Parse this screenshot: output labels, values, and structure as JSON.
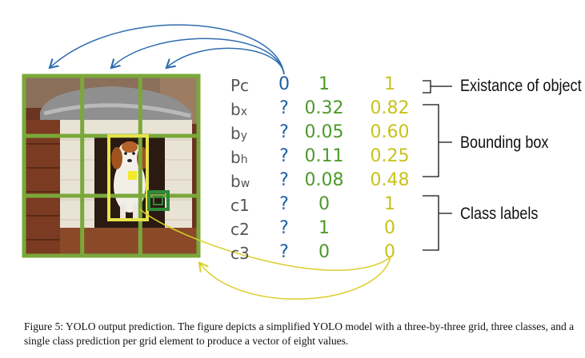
{
  "vector_rows": [
    {
      "label": "Pc",
      "sub": "",
      "col0": "0",
      "col1": "1",
      "col2": "1"
    },
    {
      "label": "b",
      "sub": "x",
      "col0": "?",
      "col1": "0.32",
      "col2": "0.82"
    },
    {
      "label": "b",
      "sub": "y",
      "col0": "?",
      "col1": "0.05",
      "col2": "0.60"
    },
    {
      "label": "b",
      "sub": "h",
      "col0": "?",
      "col1": "0.11",
      "col2": "0.25"
    },
    {
      "label": "b",
      "sub": "w",
      "col0": "?",
      "col1": "0.08",
      "col2": "0.48"
    },
    {
      "label": "c1",
      "sub": "",
      "col0": "?",
      "col1": "0",
      "col2": "1"
    },
    {
      "label": "c2",
      "sub": "",
      "col0": "?",
      "col1": "1",
      "col2": "0"
    },
    {
      "label": "c3",
      "sub": "",
      "col0": "?",
      "col1": "0",
      "col2": "0"
    }
  ],
  "groups": {
    "existence": "Existance of object",
    "bbox": "Bounding box",
    "classes": "Class labels"
  },
  "caption": "Figure 5: YOLO output prediction. The figure depicts a simplified YOLO model with a three-by-three grid, three classes, and a single class prediction per grid element to produce a vector of eight values.",
  "colors": {
    "grid_green": "#7aa83a",
    "box_yellow": "#e6e24a",
    "box_green": "#2e8b3a",
    "arrow_blue": "#2f6db0",
    "arrow_yellow": "#d9cf2a",
    "question_blue": "#1f5fa0",
    "value_green": "#4c9a2a",
    "value_yellow": "#c8c21c"
  }
}
